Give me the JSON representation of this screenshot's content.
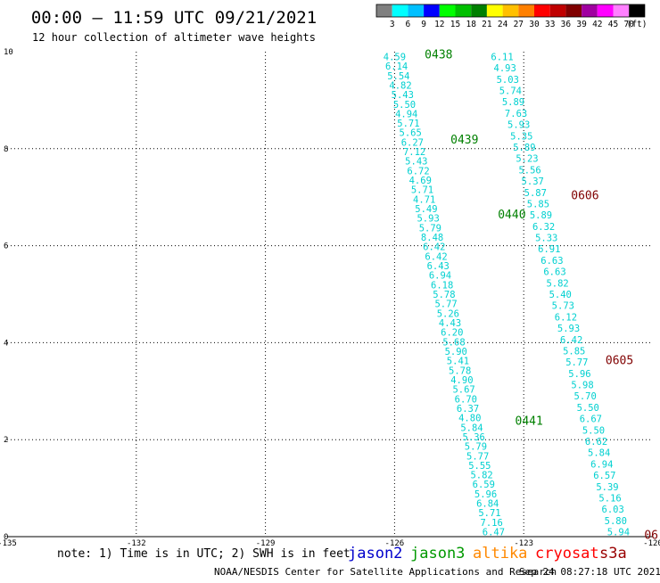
{
  "title": "00:00 – 11:59 UTC 09/21/2021",
  "subtitle": "12 hour collection of altimeter wave heights",
  "colorbar": {
    "labels": [
      "3",
      "6",
      "9",
      "12",
      "15",
      "18",
      "21",
      "24",
      "27",
      "30",
      "33",
      "36",
      "39",
      "42",
      "45",
      "70",
      "(ft)"
    ],
    "colors": [
      "#808080",
      "#00ffff",
      "#00c0ff",
      "#0000ff",
      "#00ff00",
      "#00c000",
      "#008000",
      "#ffff00",
      "#ffc000",
      "#ff8000",
      "#ff0000",
      "#c00000",
      "#800000",
      "#a000a0",
      "#ff00ff",
      "#ff80ff",
      "#000000"
    ]
  },
  "note": "note: 1) Time is in UTC; 2) SWH is in feet",
  "legend": [
    {
      "name": "jason2",
      "color": "#0000cc"
    },
    {
      "name": "jason3",
      "color": "#009900"
    },
    {
      "name": "altika",
      "color": "#ff8800"
    },
    {
      "name": "cryosat",
      "color": "#ff0000"
    },
    {
      "name": "s3a",
      "color": "#990000"
    }
  ],
  "footer_left": "NOAA/NESDIS Center for Satellite Applications and Research",
  "footer_right": "Sep 24 08:27:18 UTC 2021",
  "chart_data": {
    "type": "scatter",
    "xlim": [
      -135,
      -120
    ],
    "ylim": [
      0,
      10
    ],
    "x_ticks": [
      "-135",
      "-132",
      "-129",
      "-126",
      "-123",
      "-120"
    ],
    "y_ticks": [
      "0",
      "2",
      "4",
      "6",
      "8",
      "10"
    ],
    "grid": true,
    "value_color": "#00d0d0",
    "tracks": [
      {
        "x_start": -126.0,
        "y_start": 9.9,
        "x_end": -123.7,
        "y_end": 0.1,
        "values": [
          "4.59",
          "6.14",
          "5.54",
          "4.82",
          "5.43",
          "5.50",
          "4.94",
          "5.71",
          "5.65",
          "6.27",
          "7.12",
          "5.43",
          "6.72",
          "4.69",
          "5.71",
          "4.71",
          "5.49",
          "5.93",
          "5.79",
          "8.48",
          "6.42",
          "6.42",
          "6.43",
          "6.94",
          "6.18",
          "5.78",
          "5.77",
          "5.26",
          "4.43",
          "6.20",
          "5.68",
          "5.90",
          "5.41",
          "5.78",
          "4.90",
          "5.67",
          "6.70",
          "6.37",
          "4.80",
          "5.84",
          "5.36",
          "5.79",
          "5.77",
          "5.55",
          "5.82",
          "6.59",
          "5.96",
          "6.84",
          "5.71",
          "7.16",
          "6.47"
        ]
      },
      {
        "x_start": -123.5,
        "y_start": 9.9,
        "x_end": -120.8,
        "y_end": 0.1,
        "values": [
          "6.11",
          "4.93",
          "5.03",
          "5.74",
          "5.89",
          "7.63",
          "5.93",
          "5.35",
          "5.89",
          "5.23",
          "5.56",
          "5.37",
          "5.87",
          "5.85",
          "5.89",
          "6.32",
          "5.33",
          "6.91",
          "6.63",
          "6.63",
          "5.82",
          "5.40",
          "5.73",
          "6.12",
          "5.93",
          "6.42",
          "5.85",
          "5.77",
          "5.96",
          "5.98",
          "5.70",
          "5.50",
          "6.67",
          "5.50",
          "6.62",
          "5.84",
          "6.94",
          "6.57",
          "5.39",
          "5.16",
          "6.03",
          "5.80",
          "5.94"
        ]
      }
    ],
    "time_labels": [
      {
        "text": "0438",
        "x": -125.3,
        "y": 9.95,
        "color": "#008000"
      },
      {
        "text": "0439",
        "x": -124.7,
        "y": 8.2,
        "color": "#008000"
      },
      {
        "text": "0440",
        "x": -123.6,
        "y": 6.65,
        "color": "#008000"
      },
      {
        "text": "0441",
        "x": -123.2,
        "y": 2.4,
        "color": "#008000"
      },
      {
        "text": "0606",
        "x": -121.9,
        "y": 7.05,
        "color": "#800000"
      },
      {
        "text": "0605",
        "x": -121.1,
        "y": 3.65,
        "color": "#800000"
      },
      {
        "text": "06",
        "x": -120.2,
        "y": 0.05,
        "color": "#800000"
      }
    ]
  }
}
